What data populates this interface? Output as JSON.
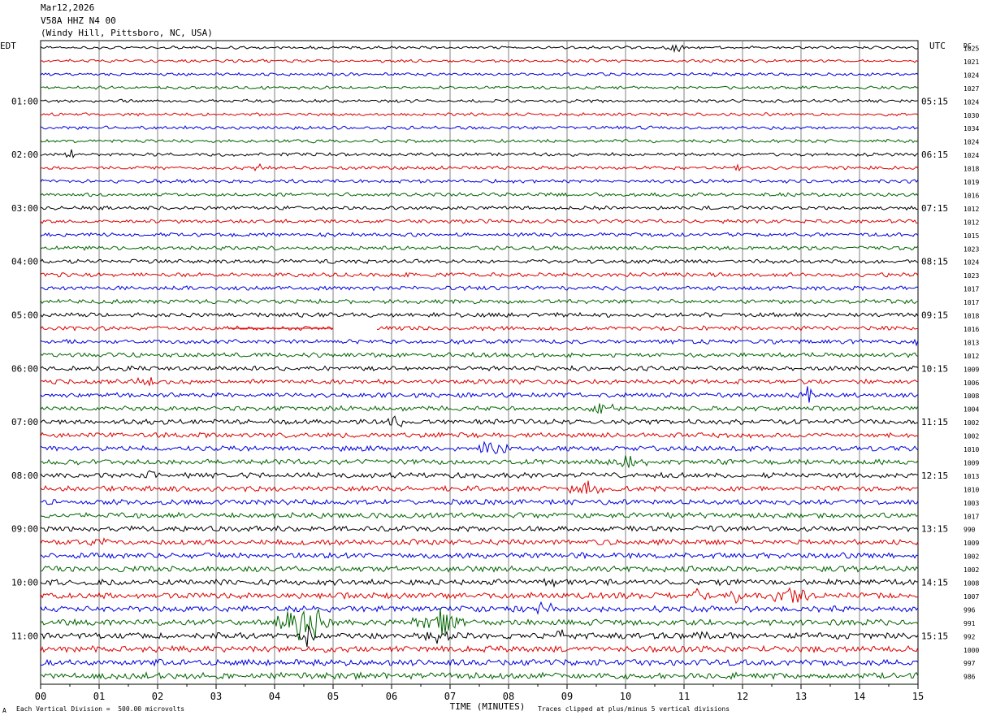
{
  "header": {
    "date": "Mar12,2026",
    "station": "V58A HHZ N4 00",
    "location": "(Windy Hill, Pittsboro, NC, USA)"
  },
  "left_tz_label": "EDT",
  "right_tz_label": "UTC",
  "dc_header": "DC",
  "footer": {
    "scale_text": "Each Vertical Division =  500.00 microvolts",
    "clip_text": "Traces clipped at plus/minus 5 vertical divisions",
    "corner_mark": "A"
  },
  "colors": {
    "trace_cycle": [
      "#000000",
      "#dd0000",
      "#0000dd",
      "#006400"
    ],
    "grid": "#808080"
  },
  "chart_data": {
    "type": "line",
    "title": "V58A HHZ N4 00",
    "xlabel": "TIME (MINUTES)",
    "ylabel": "",
    "xlim": [
      0,
      15
    ],
    "x_ticks": [
      "00",
      "01",
      "02",
      "03",
      "04",
      "05",
      "06",
      "07",
      "08",
      "09",
      "10",
      "11",
      "12",
      "13",
      "14",
      "15"
    ],
    "hour_labels_left": [
      "01:00",
      "02:00",
      "03:00",
      "04:00",
      "05:00",
      "06:00",
      "07:00",
      "08:00",
      "09:00",
      "10:00",
      "11:00"
    ],
    "hour_labels_right": [
      "05:15",
      "06:15",
      "07:15",
      "08:15",
      "09:15",
      "10:15",
      "11:15",
      "12:15",
      "13:15",
      "14:15",
      "15:15"
    ],
    "dc_offsets": [
      1025,
      1021,
      1024,
      1027,
      1024,
      1030,
      1034,
      1024,
      1024,
      1018,
      1019,
      1016,
      1012,
      1012,
      1015,
      1023,
      1024,
      1023,
      1017,
      1017,
      1018,
      1016,
      1013,
      1012,
      1009,
      1006,
      1008,
      1004,
      1002,
      1002,
      1010,
      1009,
      1013,
      1010,
      1003,
      1017,
      990,
      1009,
      1002,
      1002,
      1008,
      1007,
      996,
      991,
      992,
      1000,
      997,
      986
    ],
    "traces_per_hour": 4,
    "trace_minutes": 15,
    "gap": {
      "trace": 21,
      "start_min": 5.0,
      "end_min": 5.75
    },
    "events": [
      {
        "trace": 0,
        "minute": 10.85,
        "amp": 4,
        "dur": 0.2
      },
      {
        "trace": 8,
        "minute": 0.5,
        "amp": 5,
        "dur": 0.12
      },
      {
        "trace": 9,
        "minute": 3.7,
        "amp": 4,
        "dur": 0.1
      },
      {
        "trace": 9,
        "minute": 11.9,
        "amp": 6,
        "dur": 0.08
      },
      {
        "trace": 11,
        "minute": 11.3,
        "amp": 3,
        "dur": 0.12
      },
      {
        "trace": 17,
        "minute": 6.2,
        "amp": 3,
        "dur": 0.15
      },
      {
        "trace": 22,
        "minute": 14.95,
        "amp": 5,
        "dur": 0.08
      },
      {
        "trace": 25,
        "minute": 1.8,
        "amp": 4,
        "dur": 0.35
      },
      {
        "trace": 26,
        "minute": 13.1,
        "amp": 8,
        "dur": 0.2
      },
      {
        "trace": 27,
        "minute": 9.6,
        "amp": 5,
        "dur": 0.3
      },
      {
        "trace": 28,
        "minute": 6.05,
        "amp": 5,
        "dur": 0.2
      },
      {
        "trace": 30,
        "minute": 7.7,
        "amp": 5,
        "dur": 0.45
      },
      {
        "trace": 31,
        "minute": 10.0,
        "amp": 4,
        "dur": 0.5
      },
      {
        "trace": 32,
        "minute": 1.9,
        "amp": 4,
        "dur": 0.3
      },
      {
        "trace": 33,
        "minute": 9.3,
        "amp": 6,
        "dur": 0.45
      },
      {
        "trace": 37,
        "minute": 0.95,
        "amp": 4,
        "dur": 0.25
      },
      {
        "trace": 40,
        "minute": 8.7,
        "amp": 4,
        "dur": 0.2
      },
      {
        "trace": 41,
        "minute": 11.2,
        "amp": 6,
        "dur": 0.25
      },
      {
        "trace": 41,
        "minute": 11.9,
        "amp": 7,
        "dur": 0.2
      },
      {
        "trace": 41,
        "minute": 12.9,
        "amp": 6,
        "dur": 0.7
      },
      {
        "trace": 42,
        "minute": 8.6,
        "amp": 5,
        "dur": 0.3
      },
      {
        "trace": 43,
        "minute": 4.5,
        "amp": 18,
        "dur": 0.55
      },
      {
        "trace": 43,
        "minute": 6.85,
        "amp": 12,
        "dur": 0.55
      },
      {
        "trace": 44,
        "minute": 4.55,
        "amp": 8,
        "dur": 0.25
      },
      {
        "trace": 44,
        "minute": 6.75,
        "amp": 6,
        "dur": 0.3
      },
      {
        "trace": 44,
        "minute": 8.9,
        "amp": 4,
        "dur": 0.2
      },
      {
        "trace": 44,
        "minute": 11.4,
        "amp": 4,
        "dur": 0.2
      },
      {
        "trace": 47,
        "minute": 10.9,
        "amp": 3,
        "dur": 0.15
      }
    ]
  }
}
